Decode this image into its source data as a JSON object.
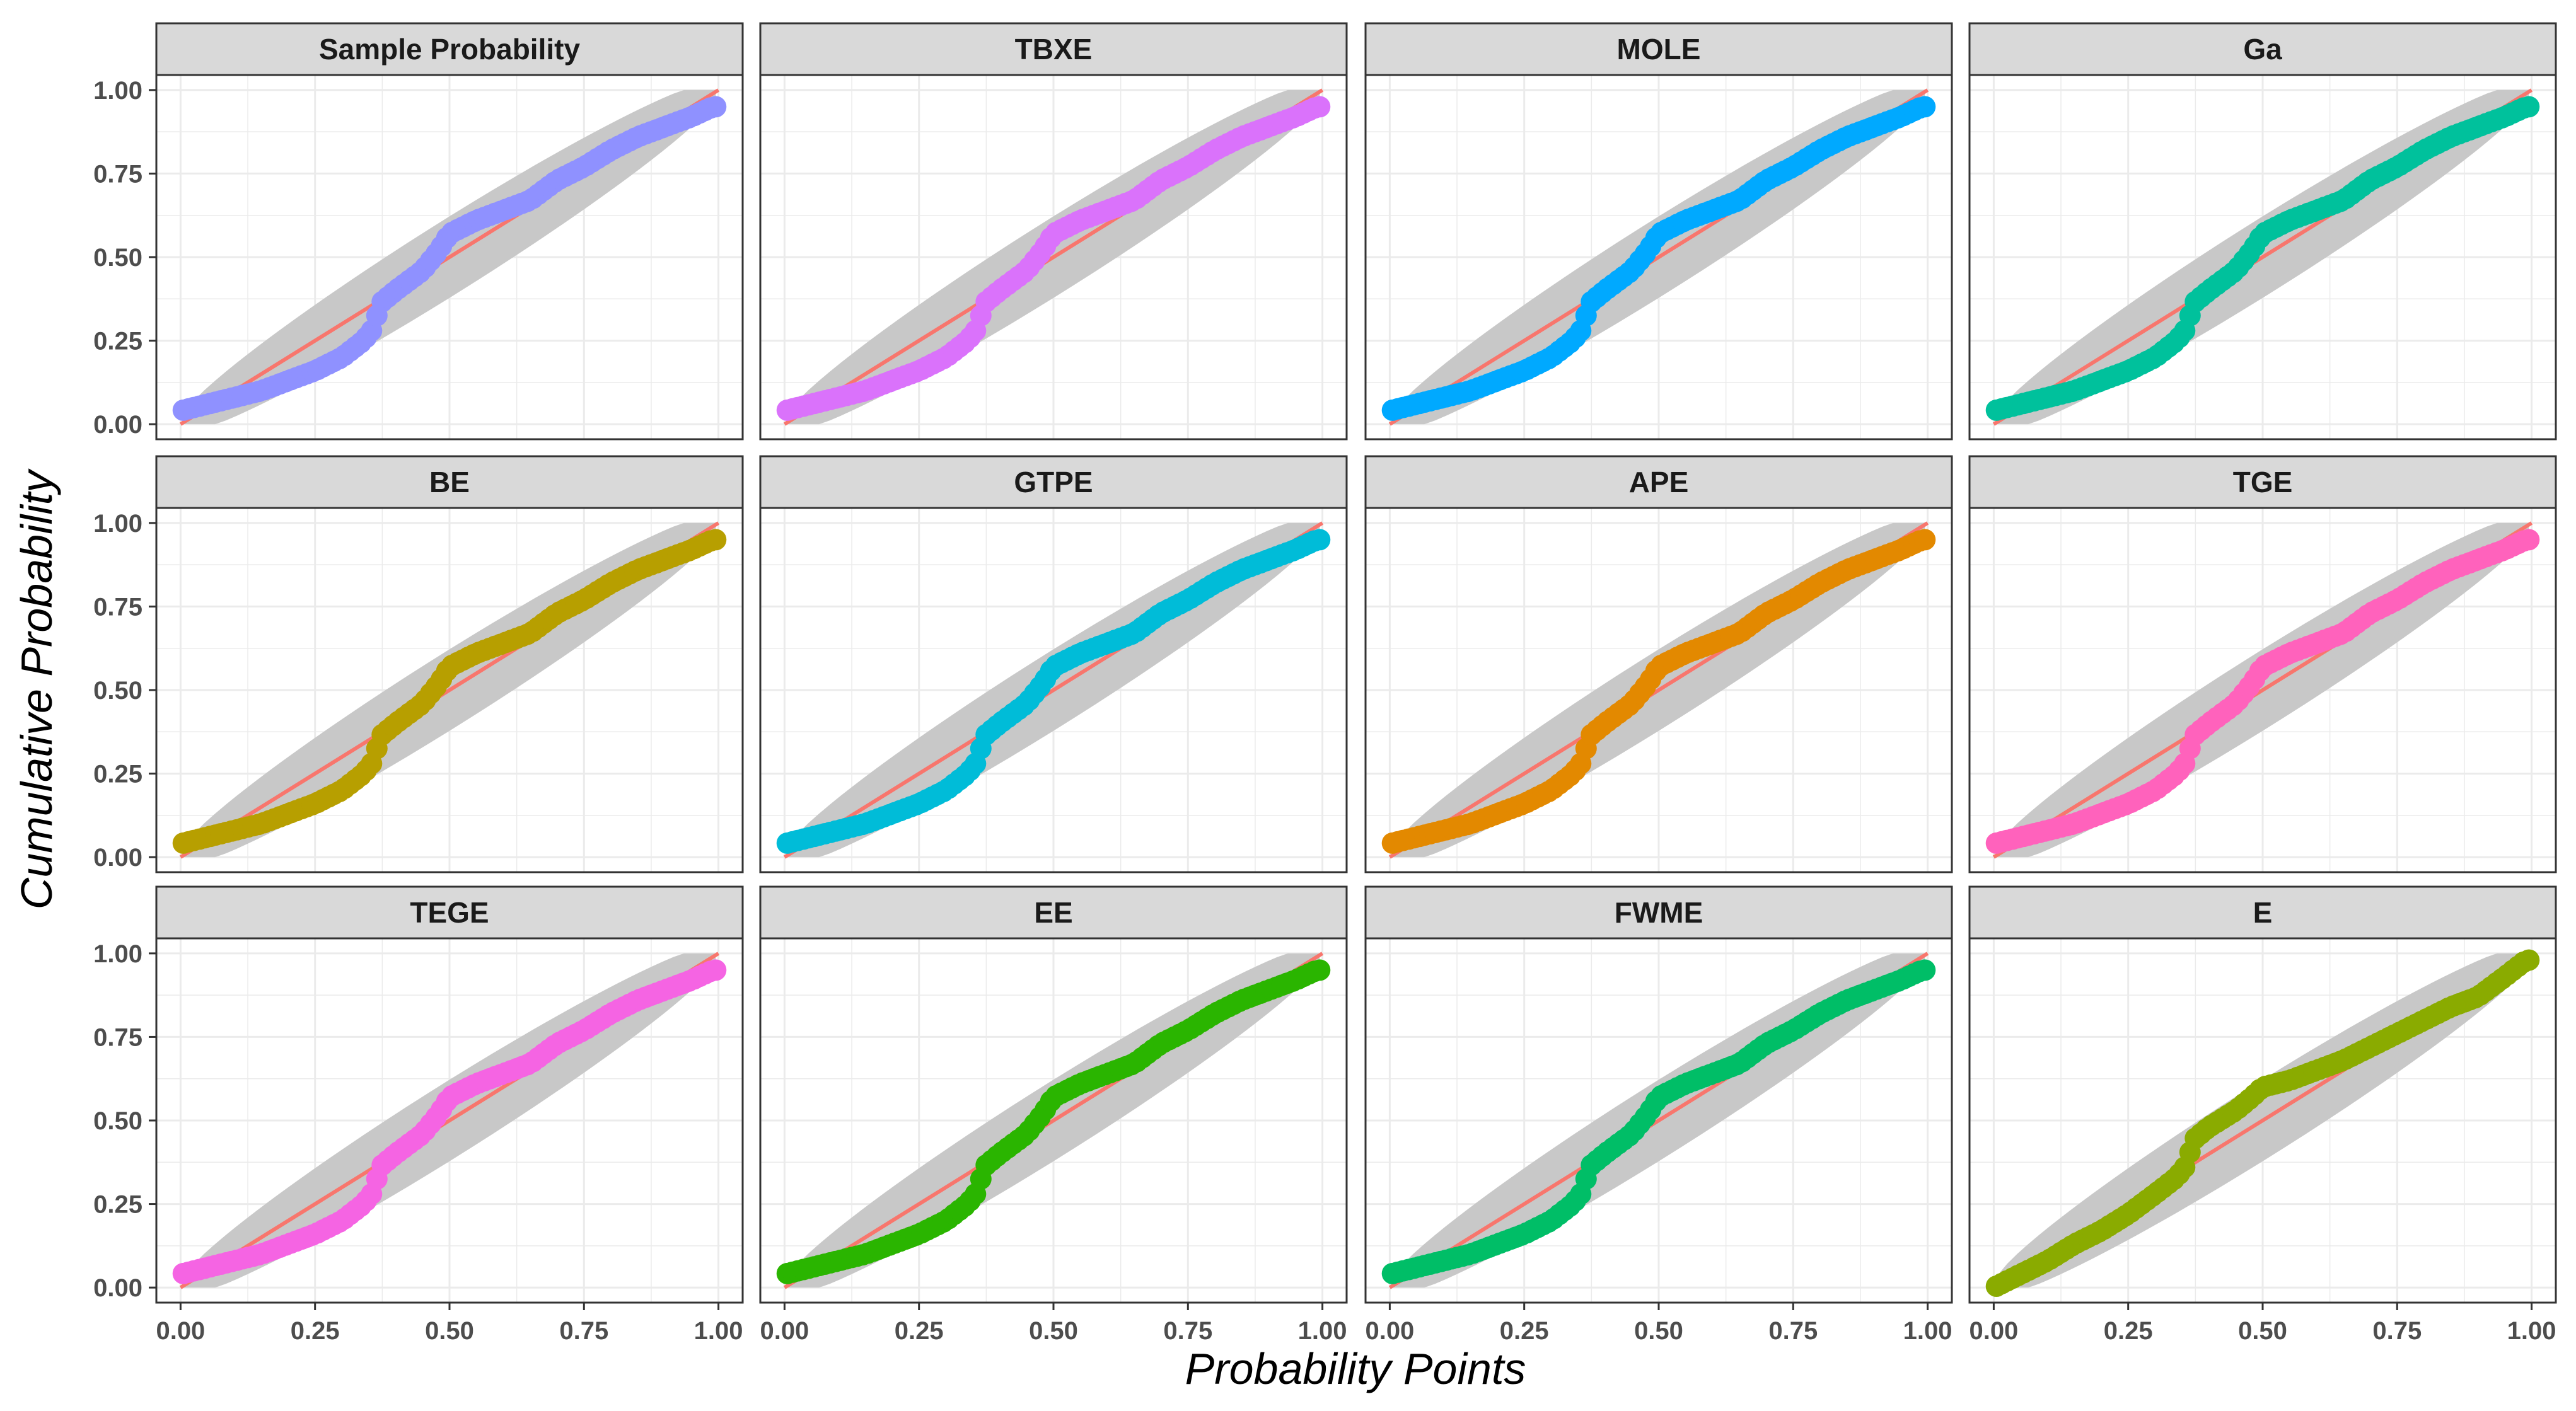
{
  "chart_data": {
    "type": "scatter",
    "xlabel": "Probability Points",
    "ylabel": "Cumulative Probability",
    "xlim": [
      0,
      1
    ],
    "ylim": [
      0,
      1
    ],
    "x_ticks": [
      "0.00",
      "0.25",
      "0.50",
      "0.75",
      "1.00"
    ],
    "y_ticks": [
      "0.00",
      "0.25",
      "0.50",
      "0.75",
      "1.00"
    ],
    "grid": true,
    "reference_line": {
      "from": [
        0,
        0
      ],
      "to": [
        1,
        1
      ],
      "color": "#F8766D"
    },
    "confidence_band_color": "#C8C8C8",
    "panels": [
      {
        "name": "Sample Probability",
        "color": "#8F91FF"
      },
      {
        "name": "TBXE",
        "color": "#DA72FB"
      },
      {
        "name": "MOLE",
        "color": "#00A9FF"
      },
      {
        "name": "Ga",
        "color": "#00C19C"
      },
      {
        "name": "BE",
        "color": "#B79F00"
      },
      {
        "name": "GTPE",
        "color": "#00BCD8"
      },
      {
        "name": "APE",
        "color": "#E38900"
      },
      {
        "name": "TGE",
        "color": "#FF62BC"
      },
      {
        "name": "TEGE",
        "color": "#F564E3"
      },
      {
        "name": "EE",
        "color": "#2AB500"
      },
      {
        "name": "FWME",
        "color": "#00BE67"
      },
      {
        "name": "E",
        "color": "#8AAB00"
      }
    ],
    "curve_nodes": [
      [
        0.0,
        0.04
      ],
      [
        0.05,
        0.06
      ],
      [
        0.1,
        0.08
      ],
      [
        0.15,
        0.1
      ],
      [
        0.2,
        0.13
      ],
      [
        0.25,
        0.16
      ],
      [
        0.3,
        0.2
      ],
      [
        0.34,
        0.25
      ],
      [
        0.36,
        0.29
      ],
      [
        0.37,
        0.36
      ],
      [
        0.4,
        0.4
      ],
      [
        0.45,
        0.46
      ],
      [
        0.48,
        0.52
      ],
      [
        0.5,
        0.57
      ],
      [
        0.55,
        0.61
      ],
      [
        0.6,
        0.64
      ],
      [
        0.65,
        0.67
      ],
      [
        0.7,
        0.73
      ],
      [
        0.75,
        0.77
      ],
      [
        0.8,
        0.82
      ],
      [
        0.85,
        0.86
      ],
      [
        0.9,
        0.89
      ],
      [
        0.95,
        0.92
      ],
      [
        0.99,
        0.95
      ]
    ],
    "curve_nodes_E": [
      [
        0.0,
        0.0
      ],
      [
        0.05,
        0.04
      ],
      [
        0.1,
        0.08
      ],
      [
        0.15,
        0.13
      ],
      [
        0.2,
        0.17
      ],
      [
        0.25,
        0.22
      ],
      [
        0.3,
        0.28
      ],
      [
        0.34,
        0.33
      ],
      [
        0.36,
        0.37
      ],
      [
        0.37,
        0.44
      ],
      [
        0.4,
        0.48
      ],
      [
        0.45,
        0.53
      ],
      [
        0.48,
        0.57
      ],
      [
        0.5,
        0.6
      ],
      [
        0.55,
        0.62
      ],
      [
        0.6,
        0.65
      ],
      [
        0.65,
        0.68
      ],
      [
        0.7,
        0.72
      ],
      [
        0.75,
        0.76
      ],
      [
        0.8,
        0.8
      ],
      [
        0.85,
        0.84
      ],
      [
        0.9,
        0.87
      ],
      [
        0.95,
        0.93
      ],
      [
        0.99,
        0.98
      ]
    ],
    "points_per_panel": 100
  }
}
